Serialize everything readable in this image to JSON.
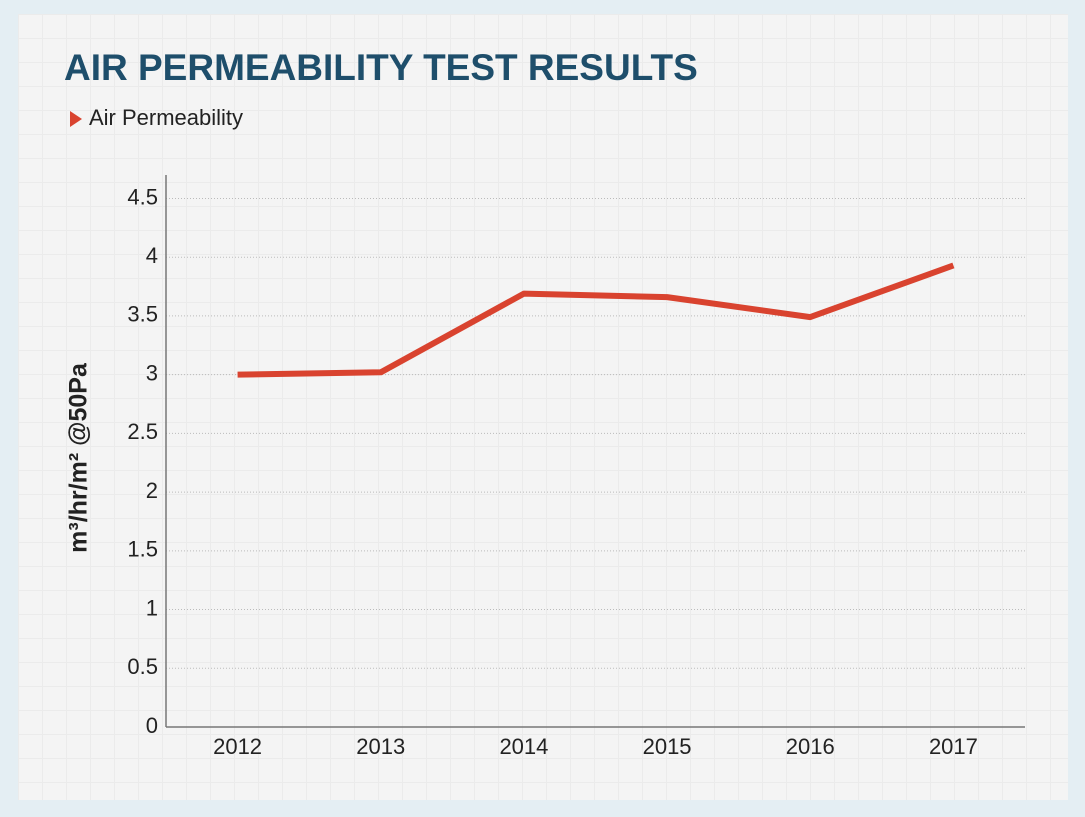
{
  "chart_data": {
    "type": "line",
    "title": "AIR PERMEABILITY TEST RESULTS",
    "y_label": "m³/hr/m² @50Pa",
    "categories": [
      "2012",
      "2013",
      "2014",
      "2015",
      "2016",
      "2017"
    ],
    "series": [
      {
        "name": "Air Permeability",
        "color": "#d9432f",
        "values": [
          3.0,
          3.02,
          3.69,
          3.66,
          3.49,
          3.93
        ]
      }
    ],
    "ylim": [
      0,
      4.7
    ],
    "yticks": [
      0,
      0.5,
      1,
      1.5,
      2,
      2.5,
      3,
      3.5,
      4,
      4.5
    ],
    "grid": true,
    "legend": "top-left"
  }
}
